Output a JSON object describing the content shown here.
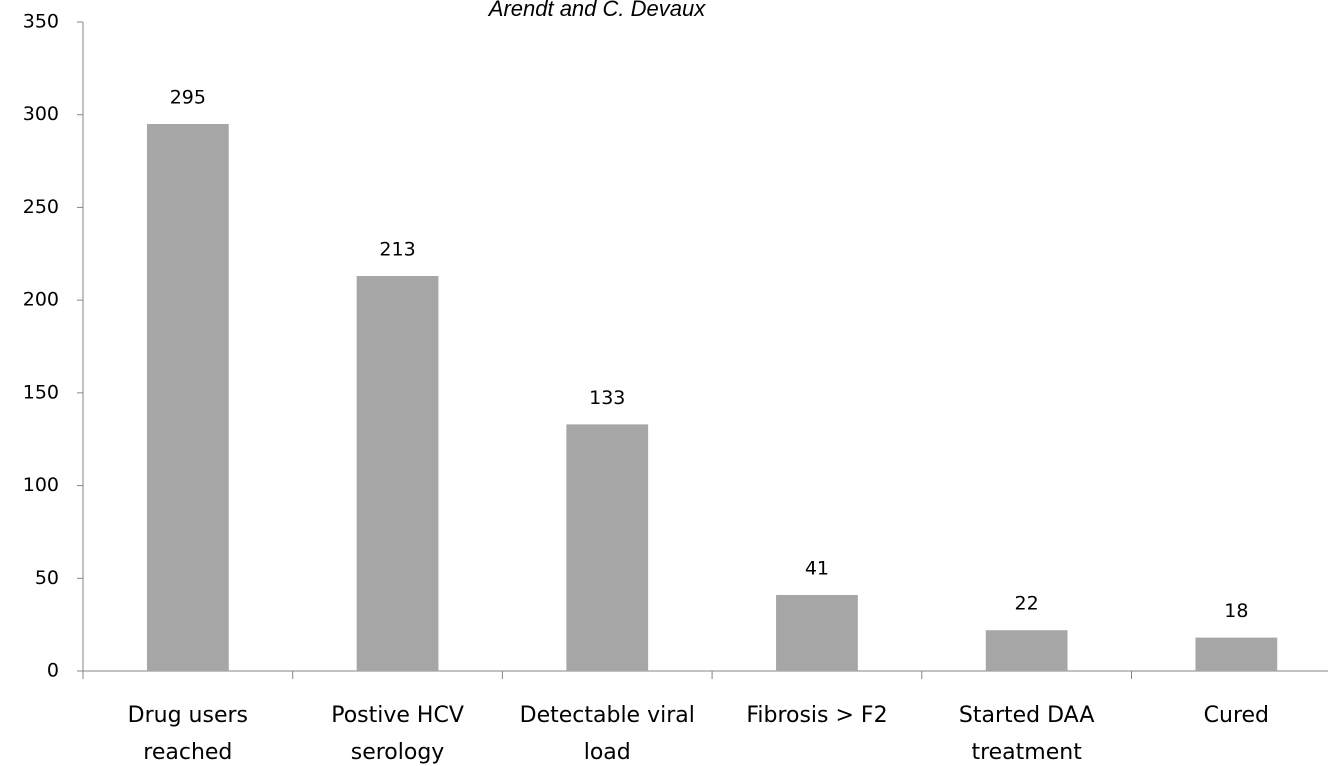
{
  "chart_data": {
    "type": "bar",
    "title": "Arendt and C. Devaux",
    "categories": [
      [
        "Drug users",
        "reached"
      ],
      [
        "Postive HCV",
        "serology"
      ],
      [
        "Detectable viral",
        "load"
      ],
      [
        "Fibrosis > F2"
      ],
      [
        "Started DAA",
        "treatment"
      ],
      [
        "Cured"
      ]
    ],
    "values": [
      295,
      213,
      133,
      41,
      22,
      18
    ],
    "color": "#a6a6a6",
    "ylim": [
      0,
      350
    ],
    "yticks": [
      0,
      50,
      100,
      150,
      200,
      250,
      300,
      350
    ],
    "grid": false
  }
}
